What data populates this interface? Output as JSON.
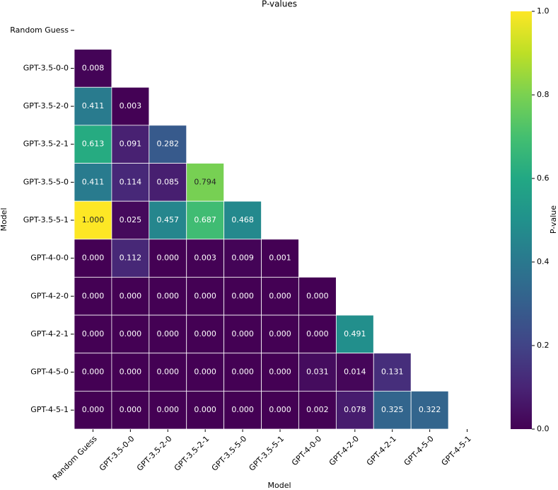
{
  "chart_data": {
    "type": "heatmap",
    "title": "P-values",
    "x_label": "Model",
    "y_label": "Model",
    "colorbar_label": "P-value",
    "colormap": "viridis",
    "categories": [
      "Random Guess",
      "GPT-3.5-0-0",
      "GPT-3.5-2-0",
      "GPT-3.5-2-1",
      "GPT-3.5-5-0",
      "GPT-3.5-5-1",
      "GPT-4-0-0",
      "GPT-4-2-0",
      "GPT-4-2-1",
      "GPT-4-5-0",
      "GPT-4-5-1"
    ],
    "values": [
      [
        null,
        null,
        null,
        null,
        null,
        null,
        null,
        null,
        null,
        null,
        null
      ],
      [
        0.008,
        null,
        null,
        null,
        null,
        null,
        null,
        null,
        null,
        null,
        null
      ],
      [
        0.411,
        0.003,
        null,
        null,
        null,
        null,
        null,
        null,
        null,
        null,
        null
      ],
      [
        0.613,
        0.091,
        0.282,
        null,
        null,
        null,
        null,
        null,
        null,
        null,
        null
      ],
      [
        0.411,
        0.114,
        0.085,
        0.794,
        null,
        null,
        null,
        null,
        null,
        null,
        null
      ],
      [
        1,
        0.025,
        0.457,
        0.687,
        0.468,
        null,
        null,
        null,
        null,
        null,
        null
      ],
      [
        0,
        0.112,
        0,
        0.003,
        0.009,
        0.001,
        null,
        null,
        null,
        null,
        null
      ],
      [
        0,
        0,
        0,
        0,
        0,
        0,
        0,
        null,
        null,
        null,
        null
      ],
      [
        0,
        0,
        0,
        0,
        0,
        0,
        0,
        0.491,
        null,
        null,
        null
      ],
      [
        0,
        0,
        0,
        0,
        0,
        0,
        0.031,
        0.014,
        0.131,
        null,
        null
      ],
      [
        0,
        0,
        0,
        0,
        0,
        0,
        0.002,
        0.078,
        0.325,
        0.322,
        null
      ]
    ],
    "value_labels": [
      [
        null,
        null,
        null,
        null,
        null,
        null,
        null,
        null,
        null,
        null,
        null
      ],
      [
        "0.008",
        null,
        null,
        null,
        null,
        null,
        null,
        null,
        null,
        null,
        null
      ],
      [
        "0.411",
        "0.003",
        null,
        null,
        null,
        null,
        null,
        null,
        null,
        null,
        null
      ],
      [
        "0.613",
        "0.091",
        "0.282",
        null,
        null,
        null,
        null,
        null,
        null,
        null,
        null
      ],
      [
        "0.411",
        "0.114",
        "0.085",
        "0.794",
        null,
        null,
        null,
        null,
        null,
        null,
        null
      ],
      [
        "1.000",
        "0.025",
        "0.457",
        "0.687",
        "0.468",
        null,
        null,
        null,
        null,
        null,
        null
      ],
      [
        "0.000",
        "0.112",
        "0.000",
        "0.003",
        "0.009",
        "0.001",
        null,
        null,
        null,
        null,
        null
      ],
      [
        "0.000",
        "0.000",
        "0.000",
        "0.000",
        "0.000",
        "0.000",
        "0.000",
        null,
        null,
        null,
        null
      ],
      [
        "0.000",
        "0.000",
        "0.000",
        "0.000",
        "0.000",
        "0.000",
        "0.000",
        "0.491",
        null,
        null,
        null
      ],
      [
        "0.000",
        "0.000",
        "0.000",
        "0.000",
        "0.000",
        "0.000",
        "0.031",
        "0.014",
        "0.131",
        null,
        null
      ],
      [
        "0.000",
        "0.000",
        "0.000",
        "0.000",
        "0.000",
        "0.000",
        "0.002",
        "0.078",
        "0.325",
        "0.322",
        null
      ]
    ],
    "clim": [
      0,
      1
    ],
    "cticks": [
      {
        "value": 0,
        "label": "0.0"
      },
      {
        "value": 0.2,
        "label": "0.2"
      },
      {
        "value": 0.4,
        "label": "0.4"
      },
      {
        "value": 0.6,
        "label": "0.6"
      },
      {
        "value": 0.8,
        "label": "0.8"
      },
      {
        "value": 1,
        "label": "1.0"
      }
    ]
  }
}
